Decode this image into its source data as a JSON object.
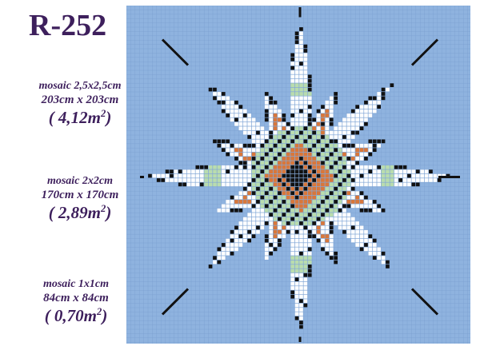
{
  "code": "R-252",
  "specs": [
    {
      "mosaic_label": "mosaic",
      "mosaic_size": "2,5x2,5cm",
      "dimensions": "203cm x 203cm",
      "area": "( 4,12m",
      "area_sup": "2",
      "area_close": ")"
    },
    {
      "mosaic_label": "mosaic",
      "mosaic_size": "2x2cm",
      "dimensions": "170cm x 170cm",
      "area": "( 2,89m",
      "area_sup": "2",
      "area_close": ")"
    },
    {
      "mosaic_label": "mosaic",
      "mosaic_size": "1x1cm",
      "dimensions": "84cm x 84cm",
      "area": "( 0,70m",
      "area_sup": "2",
      "area_close": ")"
    }
  ],
  "colors": {
    "background": "#8fb3df",
    "grid": "#6d93c7",
    "white": "#ffffff",
    "black": "#111111",
    "orange": "#d9773a",
    "green": "#b9dcae",
    "text": "#3d1f5c"
  },
  "artwork": "eight-pointed star mosaic pattern"
}
